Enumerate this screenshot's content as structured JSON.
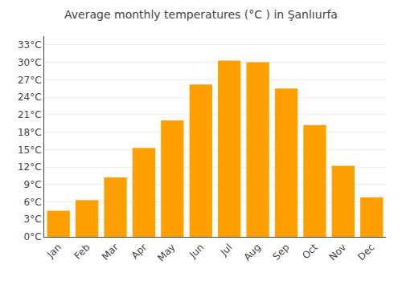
{
  "chart_data": {
    "type": "bar",
    "title": "Average monthly temperatures (°C ) in Şanlıurfa",
    "categories": [
      "Jan",
      "Feb",
      "Mar",
      "Apr",
      "May",
      "Jun",
      "Jul",
      "Aug",
      "Sep",
      "Oct",
      "Nov",
      "Dec"
    ],
    "values": [
      4.5,
      6.3,
      10.2,
      15.3,
      20.0,
      26.2,
      30.3,
      30.0,
      25.5,
      19.2,
      12.2,
      6.8
    ],
    "color": "#FFA000",
    "ylim": [
      0,
      34.5
    ],
    "yticks": [
      {
        "value": 0,
        "label": "0°C"
      },
      {
        "value": 3,
        "label": "3°C"
      },
      {
        "value": 6,
        "label": "6°C"
      },
      {
        "value": 9,
        "label": "9°C"
      },
      {
        "value": 12,
        "label": "12°C"
      },
      {
        "value": 15,
        "label": "15°C"
      },
      {
        "value": 18,
        "label": "18°C"
      },
      {
        "value": 21,
        "label": "21°C"
      },
      {
        "value": 24,
        "label": "24°C"
      },
      {
        "value": 27,
        "label": "27°C"
      },
      {
        "value": 30,
        "label": "30°C"
      },
      {
        "value": 33,
        "label": "33°C"
      }
    ],
    "grid": true
  }
}
